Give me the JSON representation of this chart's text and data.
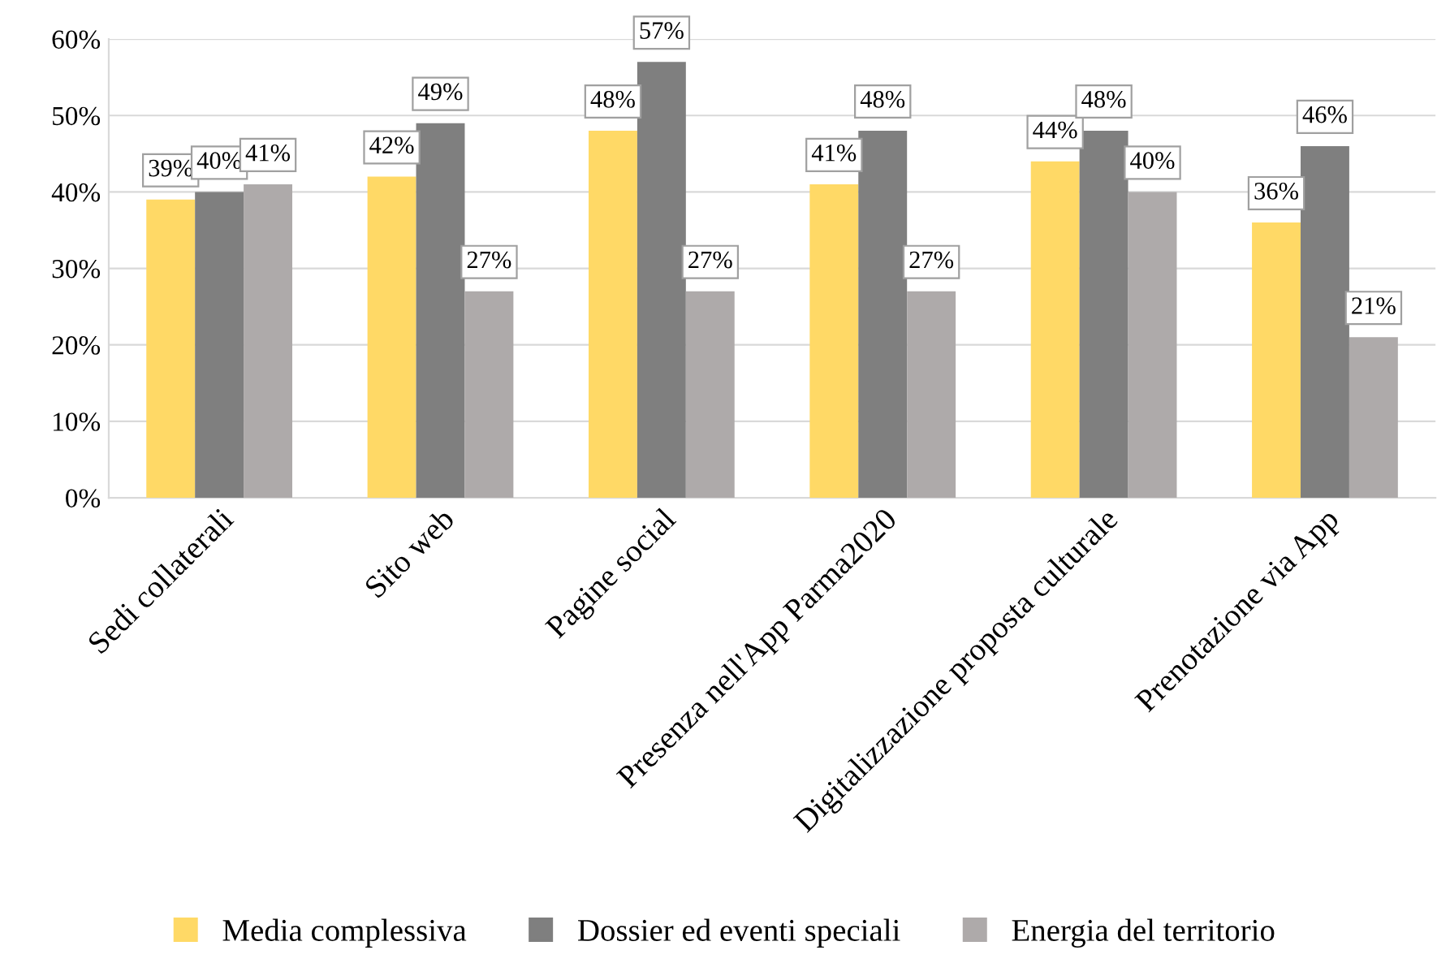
{
  "chart_data": {
    "type": "bar",
    "categories": [
      "Sedi collaterali",
      "Sito web",
      "Pagine social",
      "Presenza nell'App Parma2020",
      "Digitalizzazione proposta culturale",
      "Prenotazione via App"
    ],
    "series": [
      {
        "name": "Media complessiva",
        "color": "#ffd966",
        "values": [
          39,
          42,
          48,
          41,
          44,
          36
        ],
        "value_labels": [
          "39%",
          "42%",
          "48%",
          "41%",
          "44%",
          "36%"
        ]
      },
      {
        "name": "Dossier ed eventi speciali",
        "color": "#7f7f7f",
        "values": [
          40,
          49,
          57,
          48,
          48,
          46
        ],
        "value_labels": [
          "40%",
          "49%",
          "57%",
          "48%",
          "48%",
          "46%"
        ]
      },
      {
        "name": "Energia del territorio",
        "color": "#aeaaaa",
        "values": [
          41,
          27,
          27,
          27,
          40,
          21
        ],
        "value_labels": [
          "41%",
          "27%",
          "27%",
          "27%",
          "40%",
          "21%"
        ]
      }
    ],
    "ylim": [
      0,
      60
    ],
    "yticks": [
      {
        "value": 0,
        "label": "0%"
      },
      {
        "value": 10,
        "label": "10%"
      },
      {
        "value": 20,
        "label": "20%"
      },
      {
        "value": 30,
        "label": "30%"
      },
      {
        "value": 40,
        "label": "40%"
      },
      {
        "value": 50,
        "label": "50%"
      },
      {
        "value": 60,
        "label": "60%"
      }
    ],
    "grid": "y",
    "legend": "bottom"
  }
}
